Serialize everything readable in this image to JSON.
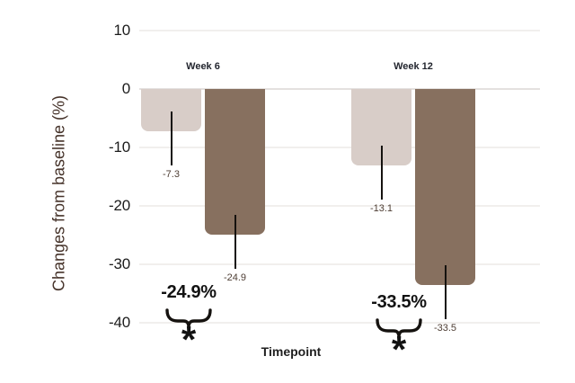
{
  "chart_data": {
    "type": "bar",
    "title": "",
    "xlabel": "Timepoint",
    "ylabel": "Changes from baseline (%)",
    "ylim": [
      -40,
      10
    ],
    "yticks": [
      10,
      0,
      -10,
      -20,
      -30,
      -40
    ],
    "grid": true,
    "legend": "none",
    "categories": [
      "Week 6",
      "Week 12"
    ],
    "series": [
      {
        "name": "light-bar-series",
        "color": "#d8cdc8",
        "values": [
          -7.3,
          -13.1
        ],
        "value_labels": [
          "-7.3",
          "-13.1"
        ]
      },
      {
        "name": "dark-bar-series",
        "color": "#87705f",
        "values": [
          -24.9,
          -33.5
        ],
        "value_labels": [
          "-24.9",
          "-33.5"
        ]
      }
    ],
    "annotations": [
      {
        "group": "Week 6",
        "label": "-24.9%",
        "marker": "*"
      },
      {
        "group": "Week 12",
        "label": "-33.5%",
        "marker": "*"
      }
    ],
    "colors": {
      "background": "#ffffff",
      "grid": "#f1efed",
      "zero_line": "#e4e1df",
      "connector": "#15120f",
      "tick_text": "#1c1c1c",
      "value_text": "#4e3e34",
      "group_text": "#23262f",
      "annotation_text": "#121212",
      "y_title_text": "#46332a"
    }
  }
}
